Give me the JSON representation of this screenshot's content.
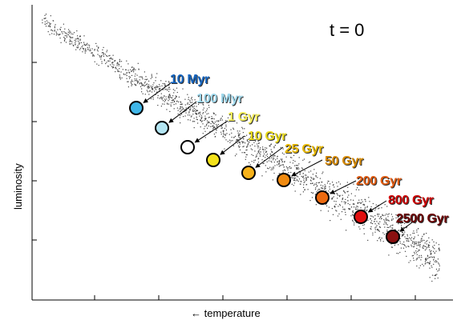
{
  "chart_data": {
    "type": "scatter",
    "xlabel": "← temperature",
    "ylabel": "luminosity",
    "annotation": "t =  0",
    "x_axis": "temperature decreases to the right",
    "grid": false,
    "tick_labels": false,
    "background_population": "small grey points scattered along a diagonal main-sequence band from upper left to lower right",
    "highlighted_stars": [
      {
        "label": "10 Myr",
        "fill": "#3fb6e8",
        "label_color": "#1565c0"
      },
      {
        "label": "100 Myr",
        "fill": "#b3e5f2",
        "label_color": "#9fd8ec"
      },
      {
        "label": "1 Gyr",
        "fill": "#ffffff",
        "label_color": "#f6ee5a"
      },
      {
        "label": "10 Gyr",
        "fill": "#f4e21a",
        "label_color": "#e8d81a"
      },
      {
        "label": "25 Gyr",
        "fill": "#f7b21a",
        "label_color": "#e8b800"
      },
      {
        "label": "50 Gyr",
        "fill": "#f08a10",
        "label_color": "#d88a00"
      },
      {
        "label": "200 Gyr",
        "fill": "#ec6a10",
        "label_color": "#e05a10"
      },
      {
        "label": "800 Gyr",
        "fill": "#e01010",
        "label_color": "#cc0000"
      },
      {
        "label": "2500 Gyr",
        "fill": "#8a1010",
        "label_color": "#6a0000"
      }
    ]
  }
}
